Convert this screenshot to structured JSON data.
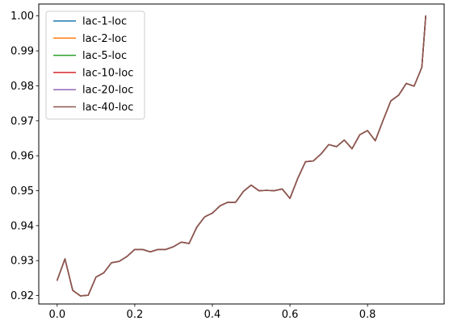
{
  "chart_data": {
    "type": "line",
    "title": "",
    "xlabel": "",
    "ylabel": "",
    "xlim": [
      -0.0475,
      0.9975
    ],
    "ylim": [
      0.9176,
      1.0034
    ],
    "xticks": [
      0.0,
      0.2,
      0.4,
      0.6,
      0.8
    ],
    "xtick_labels": [
      "0.0",
      "0.2",
      "0.4",
      "0.6",
      "0.8"
    ],
    "yticks": [
      0.92,
      0.93,
      0.94,
      0.95,
      0.96,
      0.97,
      0.98,
      0.99,
      1.0
    ],
    "ytick_labels": [
      "0.92",
      "0.93",
      "0.94",
      "0.95",
      "0.96",
      "0.97",
      "0.98",
      "0.99",
      "1.00"
    ],
    "grid": false,
    "legend_position": "upper-left",
    "x": [
      0.0,
      0.02,
      0.04,
      0.06,
      0.08,
      0.1,
      0.12,
      0.14,
      0.16,
      0.18,
      0.2,
      0.22,
      0.24,
      0.26,
      0.28,
      0.3,
      0.32,
      0.34,
      0.36,
      0.38,
      0.4,
      0.42,
      0.44,
      0.46,
      0.48,
      0.5,
      0.52,
      0.54,
      0.56,
      0.58,
      0.6,
      0.62,
      0.64,
      0.66,
      0.68,
      0.7,
      0.72,
      0.74,
      0.76,
      0.78,
      0.8,
      0.82,
      0.84,
      0.86,
      0.88,
      0.9,
      0.92,
      0.94,
      0.95
    ],
    "y": [
      0.9244,
      0.9305,
      0.9215,
      0.9199,
      0.9201,
      0.9253,
      0.9265,
      0.9294,
      0.9298,
      0.9312,
      0.9332,
      0.9332,
      0.9325,
      0.9332,
      0.9332,
      0.934,
      0.9353,
      0.9349,
      0.9396,
      0.9425,
      0.9436,
      0.9457,
      0.9467,
      0.9467,
      0.9498,
      0.9516,
      0.95,
      0.9501,
      0.95,
      0.9505,
      0.9478,
      0.9535,
      0.9583,
      0.9585,
      0.9605,
      0.9632,
      0.9626,
      0.9645,
      0.962,
      0.966,
      0.9672,
      0.9643,
      0.9701,
      0.9757,
      0.9773,
      0.9807,
      0.9799,
      0.9853,
      1.0
    ],
    "series": [
      {
        "name": "lac-1-loc",
        "color": "#1f77b4"
      },
      {
        "name": "lac-2-loc",
        "color": "#ff7f0e"
      },
      {
        "name": "lac-5-loc",
        "color": "#2ca02c"
      },
      {
        "name": "lac-10-loc",
        "color": "#d62728"
      },
      {
        "name": "lac-20-loc",
        "color": "#9467bd"
      },
      {
        "name": "lac-40-loc",
        "color": "#8c564b"
      }
    ]
  }
}
